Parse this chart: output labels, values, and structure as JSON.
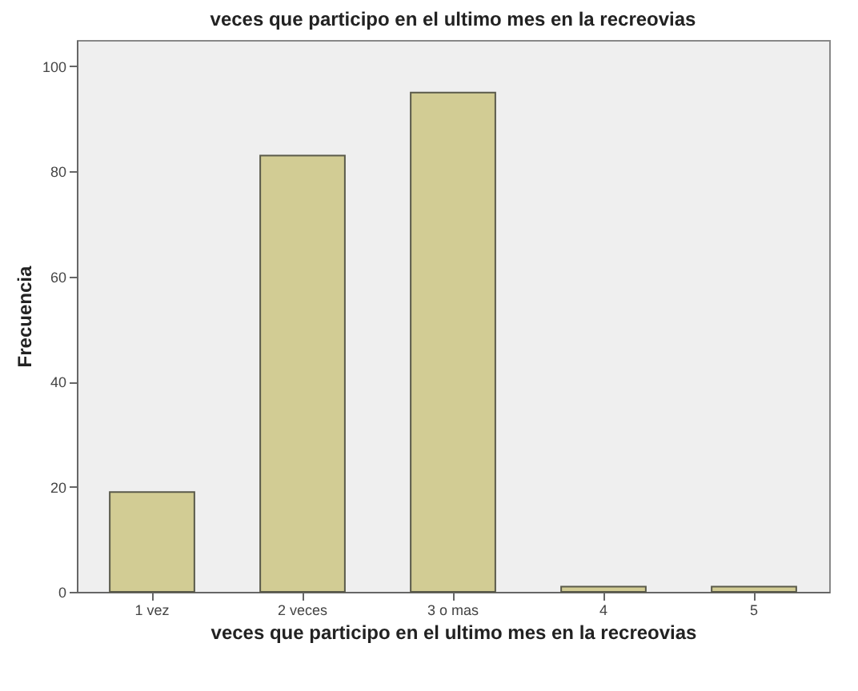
{
  "chart_data": {
    "type": "bar",
    "title": "veces que participo en el ultimo mes en la recreovias",
    "xlabel": "veces que participo en el ultimo mes en la recreovias",
    "ylabel": "Frecuencia",
    "categories": [
      "1 vez",
      "2 veces",
      "3 o mas",
      "4",
      "5"
    ],
    "values": [
      19,
      83,
      95,
      1,
      1
    ],
    "color": "#d2cc94",
    "ylim": [
      0,
      105
    ],
    "yticks": [
      0,
      20,
      40,
      60,
      80,
      100
    ],
    "grid": false
  }
}
